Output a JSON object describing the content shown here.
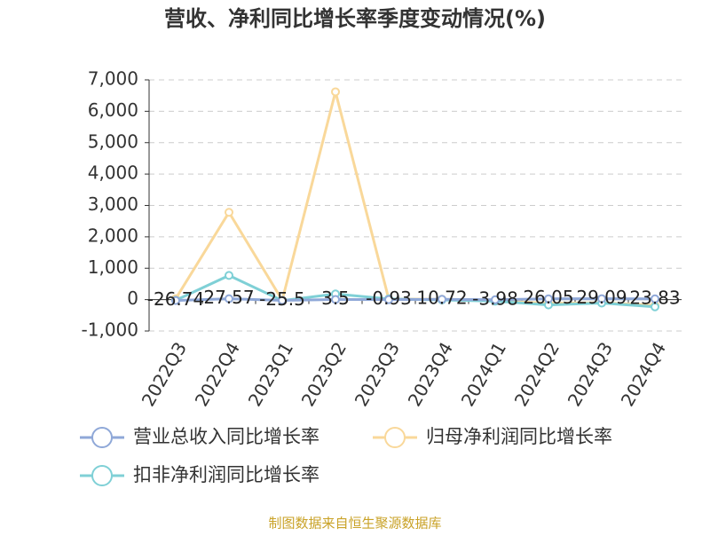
{
  "chart_data": {
    "type": "line",
    "title": "营收、净利同比增长率季度变动情况(%)",
    "categories": [
      "2022Q3",
      "2022Q4",
      "2023Q1",
      "2023Q2",
      "2023Q3",
      "2023Q4",
      "2024Q1",
      "2024Q2",
      "2024Q3",
      "2024Q4"
    ],
    "series": [
      {
        "name": "营业总收入同比增长率",
        "color": "#8fa8d8",
        "values": [
          -26.74,
          27.57,
          -25.5,
          3.5,
          -0.93,
          10.72,
          -3.98,
          26.05,
          29.09,
          23.83
        ]
      },
      {
        "name": "归母净利润同比增长率",
        "color": "#f9d89a",
        "values": [
          30,
          2780,
          -20,
          6620,
          20,
          10,
          -30,
          -120,
          -100,
          -180
        ]
      },
      {
        "name": "扣非净利润同比增长率",
        "color": "#7fd0d6",
        "values": [
          -20,
          770,
          -30,
          180,
          20,
          -10,
          -50,
          -170,
          -110,
          -230
        ]
      }
    ],
    "ylim": [
      -1000,
      7000
    ],
    "yticks": [
      {
        "value": -1000,
        "label": "-1,000"
      },
      0,
      {
        "value": 1000,
        "label": "1,000"
      },
      {
        "value": 2000,
        "label": "2,000"
      },
      {
        "value": 3000,
        "label": "3,000"
      },
      {
        "value": 4000,
        "label": "4,000"
      },
      {
        "value": 5000,
        "label": "5,000"
      },
      {
        "value": 6000,
        "label": "6,000"
      },
      {
        "value": 7000,
        "label": "7,000"
      }
    ],
    "grid": true,
    "source": "制图数据来自恒生聚源数据库"
  }
}
